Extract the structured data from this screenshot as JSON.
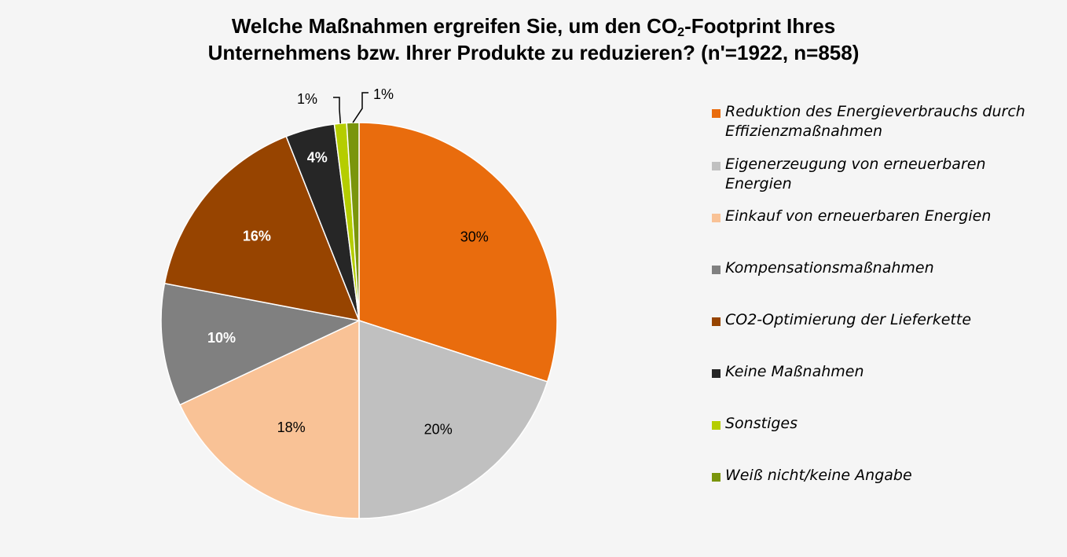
{
  "title": {
    "line1_pre": "Welche Maßnahmen ergreifen Sie, um den CO",
    "line1_sub": "2",
    "line1_post": "-Footprint Ihres",
    "line2": "Unternehmens bzw. Ihrer Produkte zu reduzieren? (n'=1922, n=858)"
  },
  "chart_data": {
    "type": "pie",
    "title": "Welche Maßnahmen ergreifen Sie, um den CO2-Footprint Ihres Unternehmens bzw. Ihrer Produkte zu reduzieren? (n'=1922, n=858)",
    "legend_position": "right",
    "slices": [
      {
        "label": "Reduktion des Energieverbrauchs durch Effizienzmaßnahmen",
        "value": 30,
        "display": "30%",
        "color": "#e96c0d",
        "label_color": "#000000"
      },
      {
        "label": "Eigenerzeugung von erneuerbaren Energien",
        "value": 20,
        "display": "20%",
        "color": "#c0c0c0",
        "label_color": "#000000"
      },
      {
        "label": "Einkauf von erneuerbaren Energien",
        "value": 18,
        "display": "18%",
        "color": "#f9c296",
        "label_color": "#000000"
      },
      {
        "label": "Kompensationsmaßnahmen",
        "value": 10,
        "display": "10%",
        "color": "#808080",
        "label_color": "#ffffff"
      },
      {
        "label": "CO2-Optimierung der Lieferkette",
        "value": 16,
        "display": "16%",
        "color": "#974400",
        "label_color": "#ffffff"
      },
      {
        "label": "Keine Maßnahmen",
        "value": 4,
        "display": "4%",
        "color": "#262626",
        "label_color": "#ffffff"
      },
      {
        "label": "Sonstiges",
        "value": 1,
        "display": "1%",
        "color": "#b5cd00",
        "label_color": "#000000"
      },
      {
        "label": "Weiß nicht/keine Angabe",
        "value": 1,
        "display": "1%",
        "color": "#7a950c",
        "label_color": "#000000"
      }
    ]
  }
}
